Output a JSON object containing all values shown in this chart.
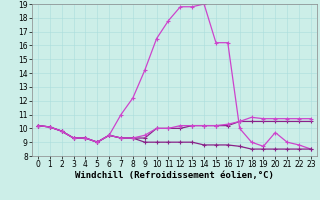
{
  "xlabel": "Windchill (Refroidissement éolien,°C)",
  "xlim": [
    -0.5,
    23.5
  ],
  "ylim": [
    8,
    19
  ],
  "xticks": [
    0,
    1,
    2,
    3,
    4,
    5,
    6,
    7,
    8,
    9,
    10,
    11,
    12,
    13,
    14,
    15,
    16,
    17,
    18,
    19,
    20,
    21,
    22,
    23
  ],
  "yticks": [
    8,
    9,
    10,
    11,
    12,
    13,
    14,
    15,
    16,
    17,
    18,
    19
  ],
  "bg_color": "#cceee8",
  "line_color_bright": "#cc44cc",
  "line_color_dark": "#882288",
  "series": {
    "x": [
      0,
      1,
      2,
      3,
      4,
      5,
      6,
      7,
      8,
      9,
      10,
      11,
      12,
      13,
      14,
      15,
      16,
      17,
      18,
      19,
      20,
      21,
      22,
      23
    ],
    "line1": [
      10.2,
      10.1,
      9.8,
      9.3,
      9.3,
      9.0,
      9.5,
      9.3,
      9.3,
      9.3,
      10.0,
      10.0,
      10.0,
      10.2,
      10.2,
      10.2,
      10.2,
      10.5,
      10.5,
      10.5,
      10.5,
      10.5,
      10.5,
      10.5
    ],
    "line2": [
      10.2,
      10.1,
      9.8,
      9.3,
      9.3,
      9.0,
      9.5,
      11.0,
      12.2,
      14.2,
      16.5,
      17.8,
      18.8,
      18.8,
      19.0,
      16.2,
      16.2,
      10.0,
      9.0,
      8.7,
      9.7,
      9.0,
      8.8,
      8.5
    ],
    "line3": [
      10.2,
      10.1,
      9.8,
      9.3,
      9.3,
      9.0,
      9.5,
      9.3,
      9.3,
      9.0,
      9.0,
      9.0,
      9.0,
      9.0,
      8.8,
      8.8,
      8.8,
      8.7,
      8.5,
      8.5,
      8.5,
      8.5,
      8.5,
      8.5
    ],
    "line4": [
      10.2,
      10.1,
      9.8,
      9.3,
      9.3,
      9.0,
      9.5,
      9.3,
      9.3,
      9.5,
      10.0,
      10.0,
      10.2,
      10.2,
      10.2,
      10.2,
      10.3,
      10.5,
      10.8,
      10.7,
      10.7,
      10.7,
      10.7,
      10.7
    ]
  },
  "tick_font_size": 5.5,
  "xlabel_font_size": 6.5
}
